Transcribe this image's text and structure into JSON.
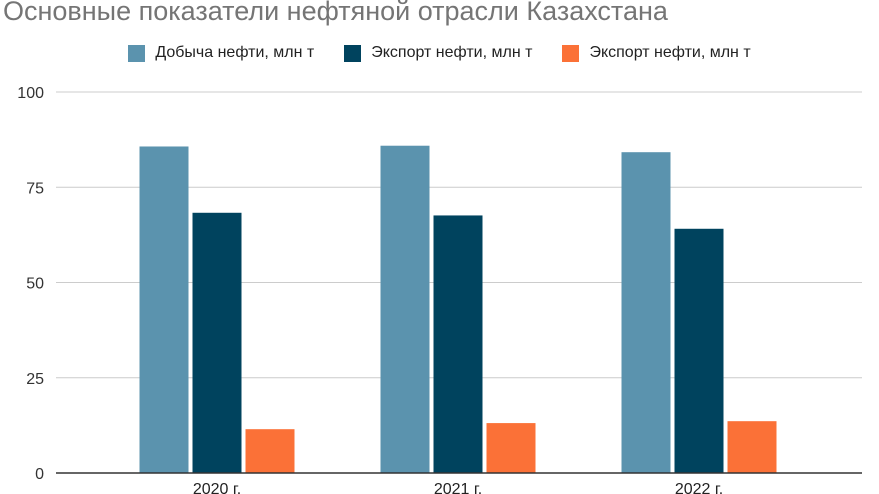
{
  "chart_data": {
    "type": "bar",
    "title": "Основные показатели нефтяной отрасли Казахстана",
    "categories": [
      "2020 г.",
      "2021 г.",
      "2022 г."
    ],
    "series": [
      {
        "name": "Добыча нефти, млн т",
        "color": "#5b93ae",
        "values": [
          85.7,
          85.9,
          84.2
        ]
      },
      {
        "name": "Экспорт нефти, млн т",
        "color": "#00435e",
        "values": [
          68.3,
          67.6,
          64.1
        ]
      },
      {
        "name": "Экспорт нефти, млн т",
        "color": "#fb7137",
        "values": [
          11.5,
          13.1,
          13.6
        ]
      }
    ],
    "ylim": [
      0,
      100
    ],
    "yticks": [
      "0",
      "25",
      "50",
      "75",
      "100"
    ],
    "xlabel": "",
    "ylabel": "",
    "grid": true,
    "legend": "top"
  }
}
